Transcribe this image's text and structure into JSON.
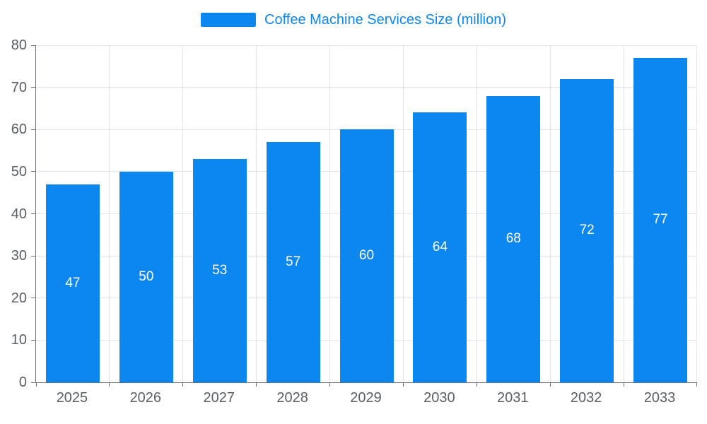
{
  "chart_data": {
    "type": "bar",
    "title": "Coffee Machine Services Size (million)",
    "categories": [
      "2025",
      "2026",
      "2027",
      "2028",
      "2029",
      "2030",
      "2031",
      "2032",
      "2033"
    ],
    "series": [
      {
        "name": "Coffee Machine Services Size (million)",
        "values": [
          47,
          50,
          53,
          57,
          60,
          64,
          68,
          72,
          77
        ]
      }
    ],
    "xlabel": "",
    "ylabel": "",
    "ylim": [
      0,
      80
    ],
    "ytick_step": 10,
    "grid": true,
    "legend_position": "top",
    "bar_color": "#0d87f0",
    "bar_label_color": "#ffffff",
    "axis_label_color": "#595f66",
    "axis_line_color": "#6e7079",
    "grid_color": "#e2e6ec",
    "background_color": "#ffffff"
  },
  "legend": {
    "label": "Coffee Machine Services Size (million)"
  }
}
